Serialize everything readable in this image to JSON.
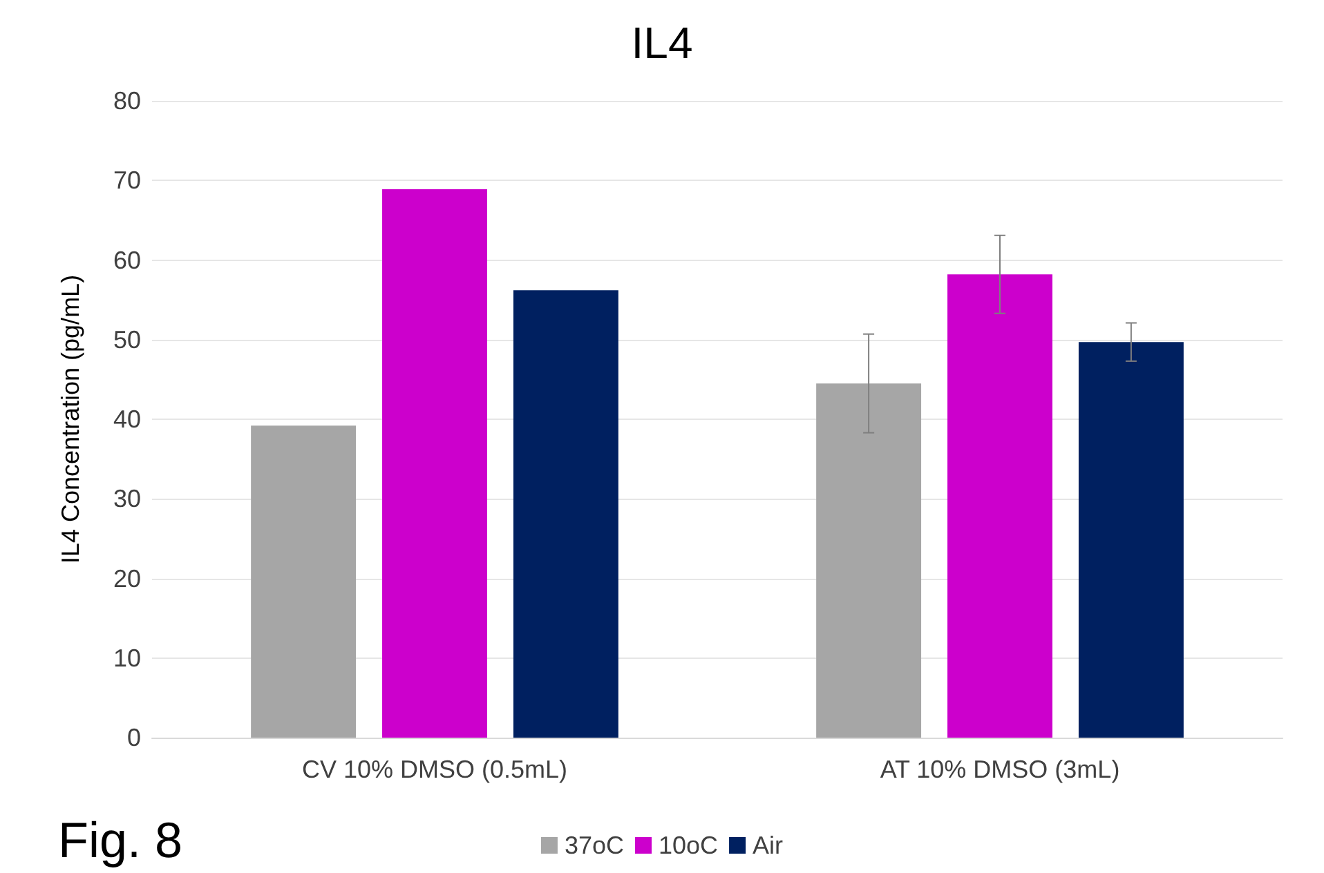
{
  "chart_data": {
    "type": "bar",
    "title": "IL4",
    "ylabel": "IL4 Concentration (pg/mL)",
    "categories": [
      "CV 10% DMSO (0.5mL)",
      "AT 10% DMSO (3mL)"
    ],
    "series": [
      {
        "name": "37oC",
        "color": "#a6a6a6",
        "values": [
          39.2,
          44.5
        ],
        "errors": [
          null,
          6.2
        ]
      },
      {
        "name": "10oC",
        "color": "#cc00cc",
        "values": [
          68.9,
          58.2
        ],
        "errors": [
          null,
          4.9
        ]
      },
      {
        "name": "Air",
        "color": "#002060",
        "values": [
          56.2,
          49.7
        ],
        "errors": [
          null,
          2.4
        ]
      }
    ],
    "ylim": [
      0,
      80
    ],
    "yticks": [
      0,
      10,
      20,
      30,
      40,
      50,
      60,
      70,
      80
    ],
    "grid": "y",
    "legend": "bottom",
    "annotations": [
      "Fig. 8"
    ]
  }
}
